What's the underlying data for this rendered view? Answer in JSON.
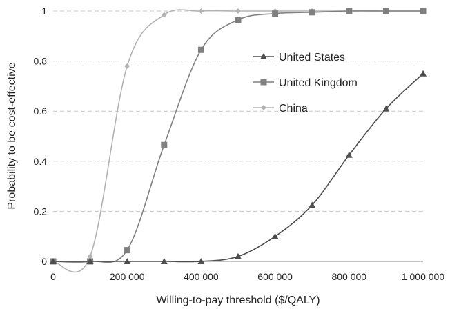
{
  "chart_data": {
    "type": "line",
    "xlabel": "Willing-to-pay threshold ($/QALY)",
    "ylabel": "Probability to be cost-effective",
    "xlim": [
      0,
      1000000
    ],
    "ylim": [
      0,
      1
    ],
    "x_ticks": [
      0,
      200000,
      400000,
      600000,
      800000,
      1000000
    ],
    "x_tick_labels": [
      "0",
      "200 000",
      "400 000",
      "600 000",
      "800 000",
      "1 000 000"
    ],
    "y_ticks": [
      0,
      0.2,
      0.4,
      0.6,
      0.8,
      1
    ],
    "y_tick_labels": [
      "0",
      "0.2",
      "0.4",
      "0.6",
      "0.8",
      "1"
    ],
    "grid": "horizontal dashed",
    "legend_position": "right, upper-middle",
    "x": [
      0,
      100000,
      200000,
      300000,
      400000,
      500000,
      600000,
      700000,
      800000,
      900000,
      1000000
    ],
    "series": [
      {
        "name": "United States",
        "marker": "triangle",
        "color": "#4d4d4d",
        "values": [
          0,
          0,
          0,
          0,
          0,
          0.02,
          0.1,
          0.225,
          0.425,
          0.61,
          0.75
        ]
      },
      {
        "name": "United Kingdom",
        "marker": "square",
        "color": "#808080",
        "values": [
          0,
          0,
          0.045,
          0.465,
          0.845,
          0.965,
          0.99,
          0.995,
          1,
          1,
          1
        ]
      },
      {
        "name": "China",
        "marker": "diamond",
        "color": "#b3b3b3",
        "values": [
          0,
          0.02,
          0.78,
          0.985,
          1,
          1,
          1,
          1,
          1,
          1,
          1
        ]
      }
    ]
  }
}
